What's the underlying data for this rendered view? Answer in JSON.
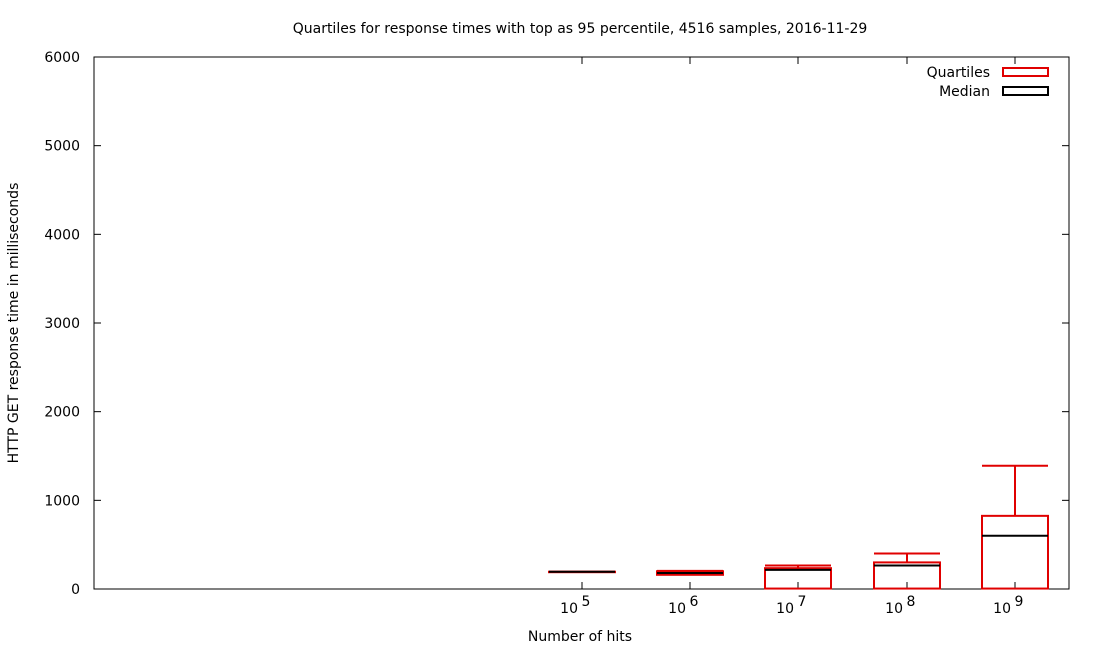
{
  "chart_data": {
    "type": "boxplot",
    "title": "Quartiles for response times with top as 95 percentile, 4516 samples, 2016-11-29",
    "xlabel": "Number of hits",
    "ylabel": "HTTP GET response time in milliseconds",
    "ylim": [
      0,
      6000
    ],
    "yticks": [
      0,
      1000,
      2000,
      3000,
      4000,
      5000,
      6000
    ],
    "xscale": "log",
    "xticks": [
      {
        "base": "10",
        "exp": "5"
      },
      {
        "base": "10",
        "exp": "6"
      },
      {
        "base": "10",
        "exp": "7"
      },
      {
        "base": "10",
        "exp": "8"
      },
      {
        "base": "10",
        "exp": "9"
      }
    ],
    "legend": {
      "position": "top-right",
      "entries": [
        {
          "label": "Quartiles",
          "color": "#e00000"
        },
        {
          "label": "Median",
          "color": "#000000"
        }
      ]
    },
    "boxes": [
      {
        "x": "10^5",
        "q1": 195,
        "median": 195,
        "q3": 195,
        "p95": 195
      },
      {
        "x": "10^6",
        "q1": 160,
        "median": 180,
        "q3": 200,
        "p95": 205
      },
      {
        "x": "10^7",
        "q1": 5,
        "median": 215,
        "q3": 235,
        "p95": 265
      },
      {
        "x": "10^8",
        "q1": 5,
        "median": 265,
        "q3": 300,
        "p95": 400
      },
      {
        "x": "10^9",
        "q1": 5,
        "median": 600,
        "q3": 825,
        "p95": 1390
      }
    ],
    "grid": false
  }
}
